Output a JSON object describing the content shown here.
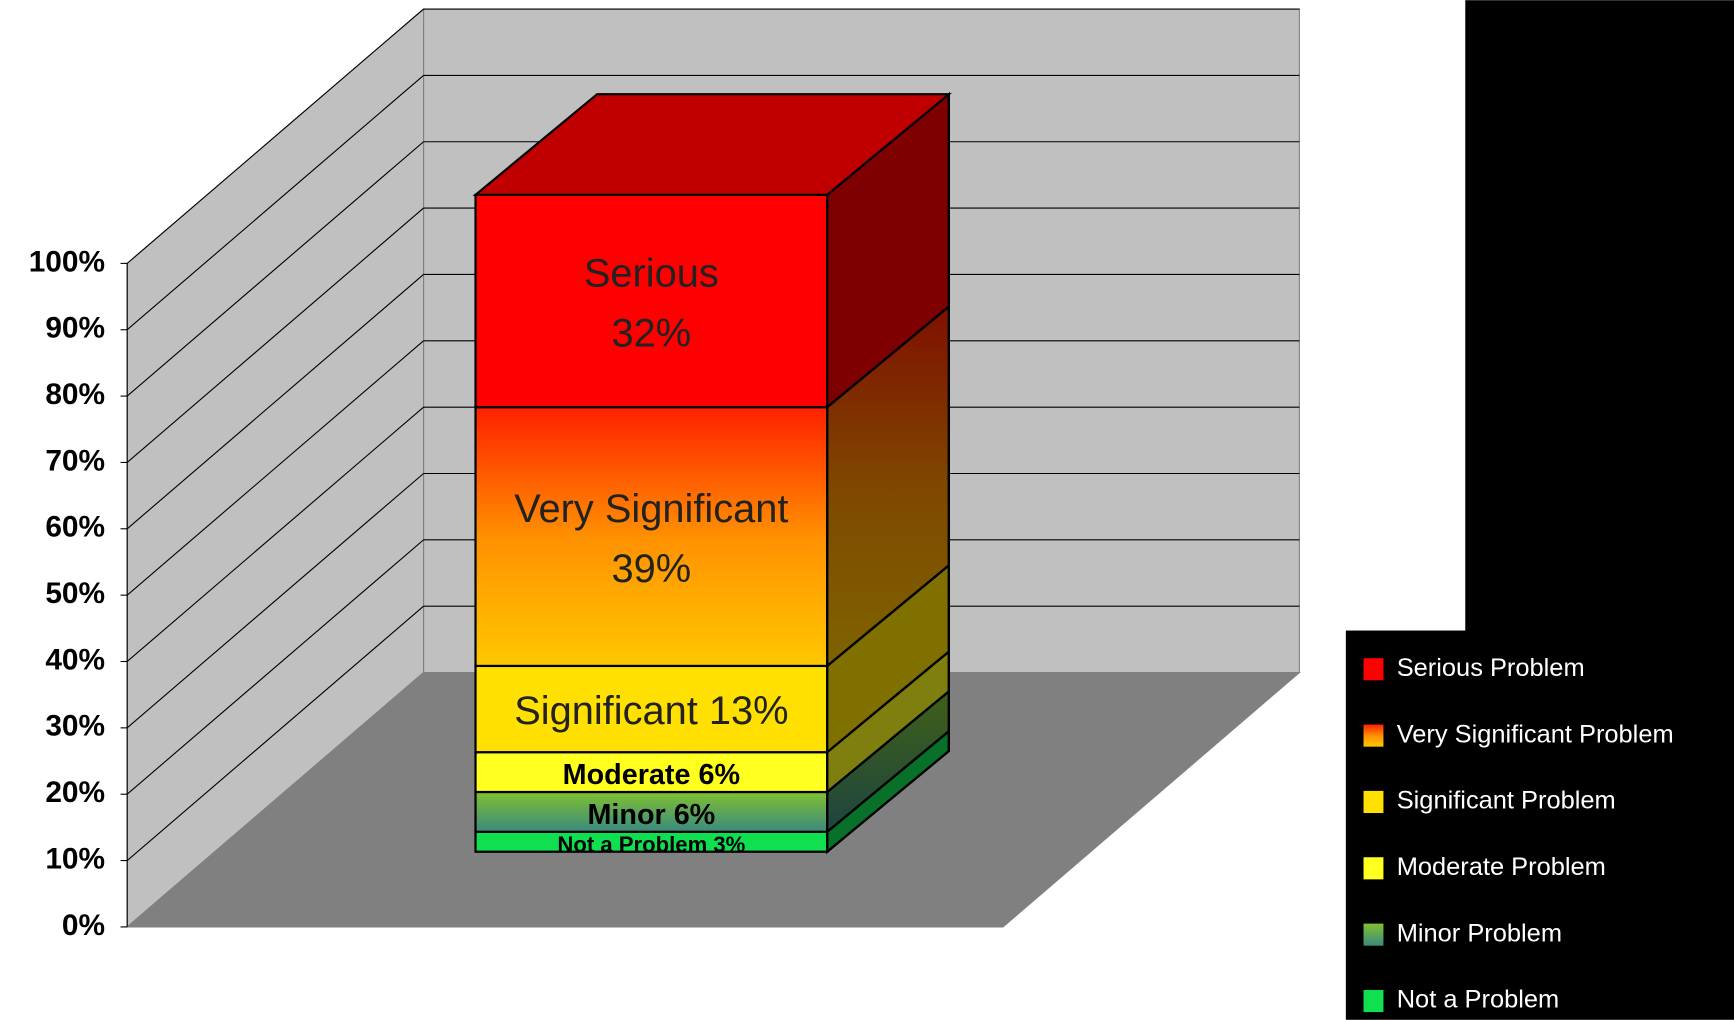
{
  "chart_data": {
    "type": "bar",
    "stacked": true,
    "categories": [
      null
    ],
    "series": [
      {
        "name": "Not a Problem",
        "color": "#10e050",
        "values": [
          3
        ],
        "value_labels": [
          "Not a Problem 3%"
        ]
      },
      {
        "name": "Minor Problem",
        "color": "#5aa05a",
        "values": [
          6
        ],
        "value_labels": [
          "Minor 6%"
        ]
      },
      {
        "name": "Moderate Problem",
        "color": "#ffff20",
        "values": [
          6
        ],
        "value_labels": [
          "Moderate 6%"
        ]
      },
      {
        "name": "Significant Problem",
        "color": "#ffe000",
        "values": [
          13
        ],
        "value_labels": [
          "Significant 13%"
        ]
      },
      {
        "name": "Very Significant Problem",
        "color": "#ff8000",
        "values": [
          39
        ],
        "value_labels": [
          "Very Significant\n39%"
        ]
      },
      {
        "name": "Serious Problem",
        "color": "#ff0000",
        "values": [
          32
        ],
        "value_labels": [
          "Serious\n32%"
        ]
      }
    ],
    "ylim": [
      0,
      100
    ],
    "yticks": [
      {
        "value": 0,
        "label": "0%"
      },
      {
        "value": 10,
        "label": "10%"
      },
      {
        "value": 20,
        "label": "20%"
      },
      {
        "value": 30,
        "label": "30%"
      },
      {
        "value": 40,
        "label": "40%"
      },
      {
        "value": 50,
        "label": "50%"
      },
      {
        "value": 60,
        "label": "60%"
      },
      {
        "value": 70,
        "label": "70%"
      },
      {
        "value": 80,
        "label": "80%"
      },
      {
        "value": 90,
        "label": "90%"
      },
      {
        "value": 100,
        "label": "100%"
      }
    ],
    "grid": true
  }
}
